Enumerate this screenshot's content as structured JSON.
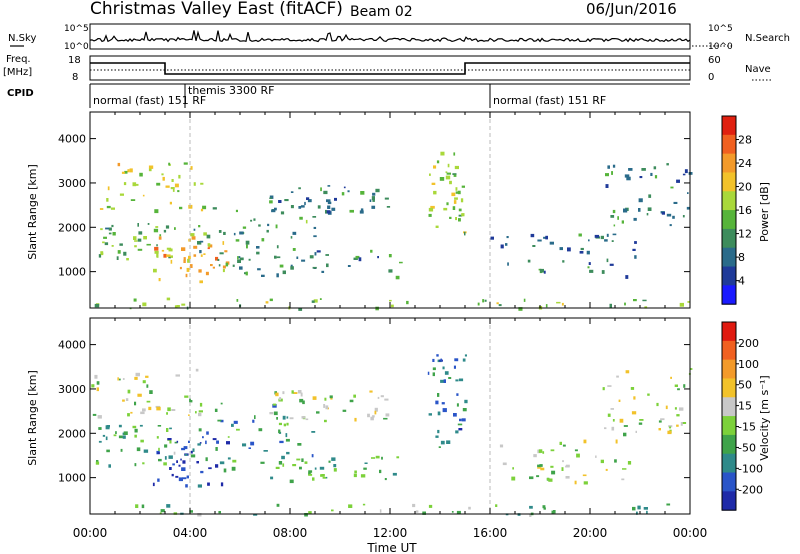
{
  "header": {
    "title": "Christmas Valley East (fitACF)",
    "beam": "Beam 02",
    "date": "06/Jun/2016"
  },
  "top_panels": {
    "nsky_label": "N.Sky",
    "nsearch_label": "N.Search",
    "freq_label": "Freq.",
    "freq_unit": "[MHz]",
    "nave_label": "Nave",
    "cpid_label": "CPID",
    "noise_ticks_left": [
      "10^5",
      "10^0"
    ],
    "noise_ticks_right": [
      "10^5",
      "10^0"
    ],
    "freq_ticks_left": [
      "18",
      "8"
    ],
    "nave_ticks_right": [
      "60",
      "0"
    ],
    "cpid_segments": [
      {
        "label": "normal (fast) 151 RF",
        "start_h": 0.0,
        "end_h": 3.8
      },
      {
        "label": "themis 3300 RF",
        "start_h": 3.8,
        "end_h": 16.0
      },
      {
        "label": "normal (fast) 151 RF",
        "start_h": 16.0,
        "end_h": 24.0
      }
    ],
    "freq_levels": [
      {
        "start_h": 0.0,
        "end_h": 3.0,
        "value": "high"
      },
      {
        "start_h": 3.0,
        "end_h": 15.0,
        "value": "low"
      },
      {
        "start_h": 15.0,
        "end_h": 24.0,
        "value": "high"
      }
    ]
  },
  "chart_data": [
    {
      "type": "heatmap",
      "name": "power",
      "ylabel": "Slant Range [km]",
      "yticks": [
        "1000",
        "2000",
        "3000",
        "4000"
      ],
      "ylim": [
        180,
        4600
      ],
      "xlim": [
        0,
        24
      ],
      "colorbar_label": "Power [dB]",
      "colorbar_ticks": [
        "4",
        "8",
        "12",
        "16",
        "20",
        "24",
        "28"
      ],
      "colors": [
        "#1a1aff",
        "#1f3a99",
        "#2a6b8a",
        "#3d8c5c",
        "#56b43a",
        "#a9d83a",
        "#f2c22a",
        "#f39a2a",
        "#f06020",
        "#e02010"
      ],
      "echo_regions": [
        {
          "t0": 0.0,
          "t1": 4.5,
          "r0": 2400,
          "r1": 3500,
          "level": 0.55
        },
        {
          "t0": 0.2,
          "t1": 3.5,
          "r0": 1300,
          "r1": 2200,
          "level": 0.45
        },
        {
          "t0": 2.5,
          "t1": 5.5,
          "r0": 800,
          "r1": 1900,
          "level": 0.75
        },
        {
          "t0": 4.0,
          "t1": 9.0,
          "r0": 1400,
          "r1": 2700,
          "level": 0.35
        },
        {
          "t0": 5.0,
          "t1": 12.5,
          "r0": 900,
          "r1": 1500,
          "level": 0.3
        },
        {
          "t0": 7.0,
          "t1": 12.0,
          "r0": 2300,
          "r1": 3000,
          "level": 0.3
        },
        {
          "t0": 13.5,
          "t1": 15.0,
          "r0": 1700,
          "r1": 3800,
          "level": 0.5
        },
        {
          "t0": 16.0,
          "t1": 22.0,
          "r0": 900,
          "r1": 1900,
          "level": 0.25
        },
        {
          "t0": 20.5,
          "t1": 24.0,
          "r0": 2000,
          "r1": 3500,
          "level": 0.3
        },
        {
          "t0": 0.0,
          "t1": 24.0,
          "r0": 180,
          "r1": 420,
          "level": 0.45
        }
      ]
    },
    {
      "type": "heatmap",
      "name": "velocity",
      "ylabel": "Slant Range [km]",
      "yticks": [
        "1000",
        "2000",
        "3000",
        "4000"
      ],
      "ylim": [
        180,
        4600
      ],
      "xlim": [
        0,
        24
      ],
      "xlabel": "Time UT",
      "xticks": [
        "00:00",
        "04:00",
        "08:00",
        "12:00",
        "16:00",
        "20:00",
        "00:00"
      ],
      "colorbar_label": "Velocity [m s⁻¹]",
      "colorbar_ticks": [
        "200",
        "100",
        "50",
        "15",
        "-15",
        "-50",
        "-100",
        "-200"
      ],
      "colors": [
        "#1e2aa8",
        "#2a55c8",
        "#2f8a8a",
        "#3fa34a",
        "#7cd13a",
        "#c8c8c8",
        "#f2c22a",
        "#f39a2a",
        "#f06020",
        "#e01a10"
      ],
      "echo_regions": [
        {
          "t0": 0.0,
          "t1": 4.5,
          "r0": 2400,
          "r1": 3500,
          "level": 0.5
        },
        {
          "t0": 0.2,
          "t1": 3.5,
          "r0": 1300,
          "r1": 2200,
          "level": 0.35
        },
        {
          "t0": 2.5,
          "t1": 5.5,
          "r0": 800,
          "r1": 1900,
          "level": 0.05
        },
        {
          "t0": 4.0,
          "t1": 9.0,
          "r0": 1400,
          "r1": 2700,
          "level": 0.25
        },
        {
          "t0": 5.0,
          "t1": 12.5,
          "r0": 900,
          "r1": 1500,
          "level": 0.35
        },
        {
          "t0": 7.0,
          "t1": 12.0,
          "r0": 2300,
          "r1": 3000,
          "level": 0.5
        },
        {
          "t0": 13.5,
          "t1": 15.0,
          "r0": 1700,
          "r1": 3800,
          "level": 0.2
        },
        {
          "t0": 16.0,
          "t1": 22.0,
          "r0": 900,
          "r1": 1900,
          "level": 0.5
        },
        {
          "t0": 20.5,
          "t1": 24.0,
          "r0": 2000,
          "r1": 3500,
          "level": 0.5
        },
        {
          "t0": 0.0,
          "t1": 24.0,
          "r0": 180,
          "r1": 420,
          "level": 0.38
        }
      ]
    }
  ]
}
